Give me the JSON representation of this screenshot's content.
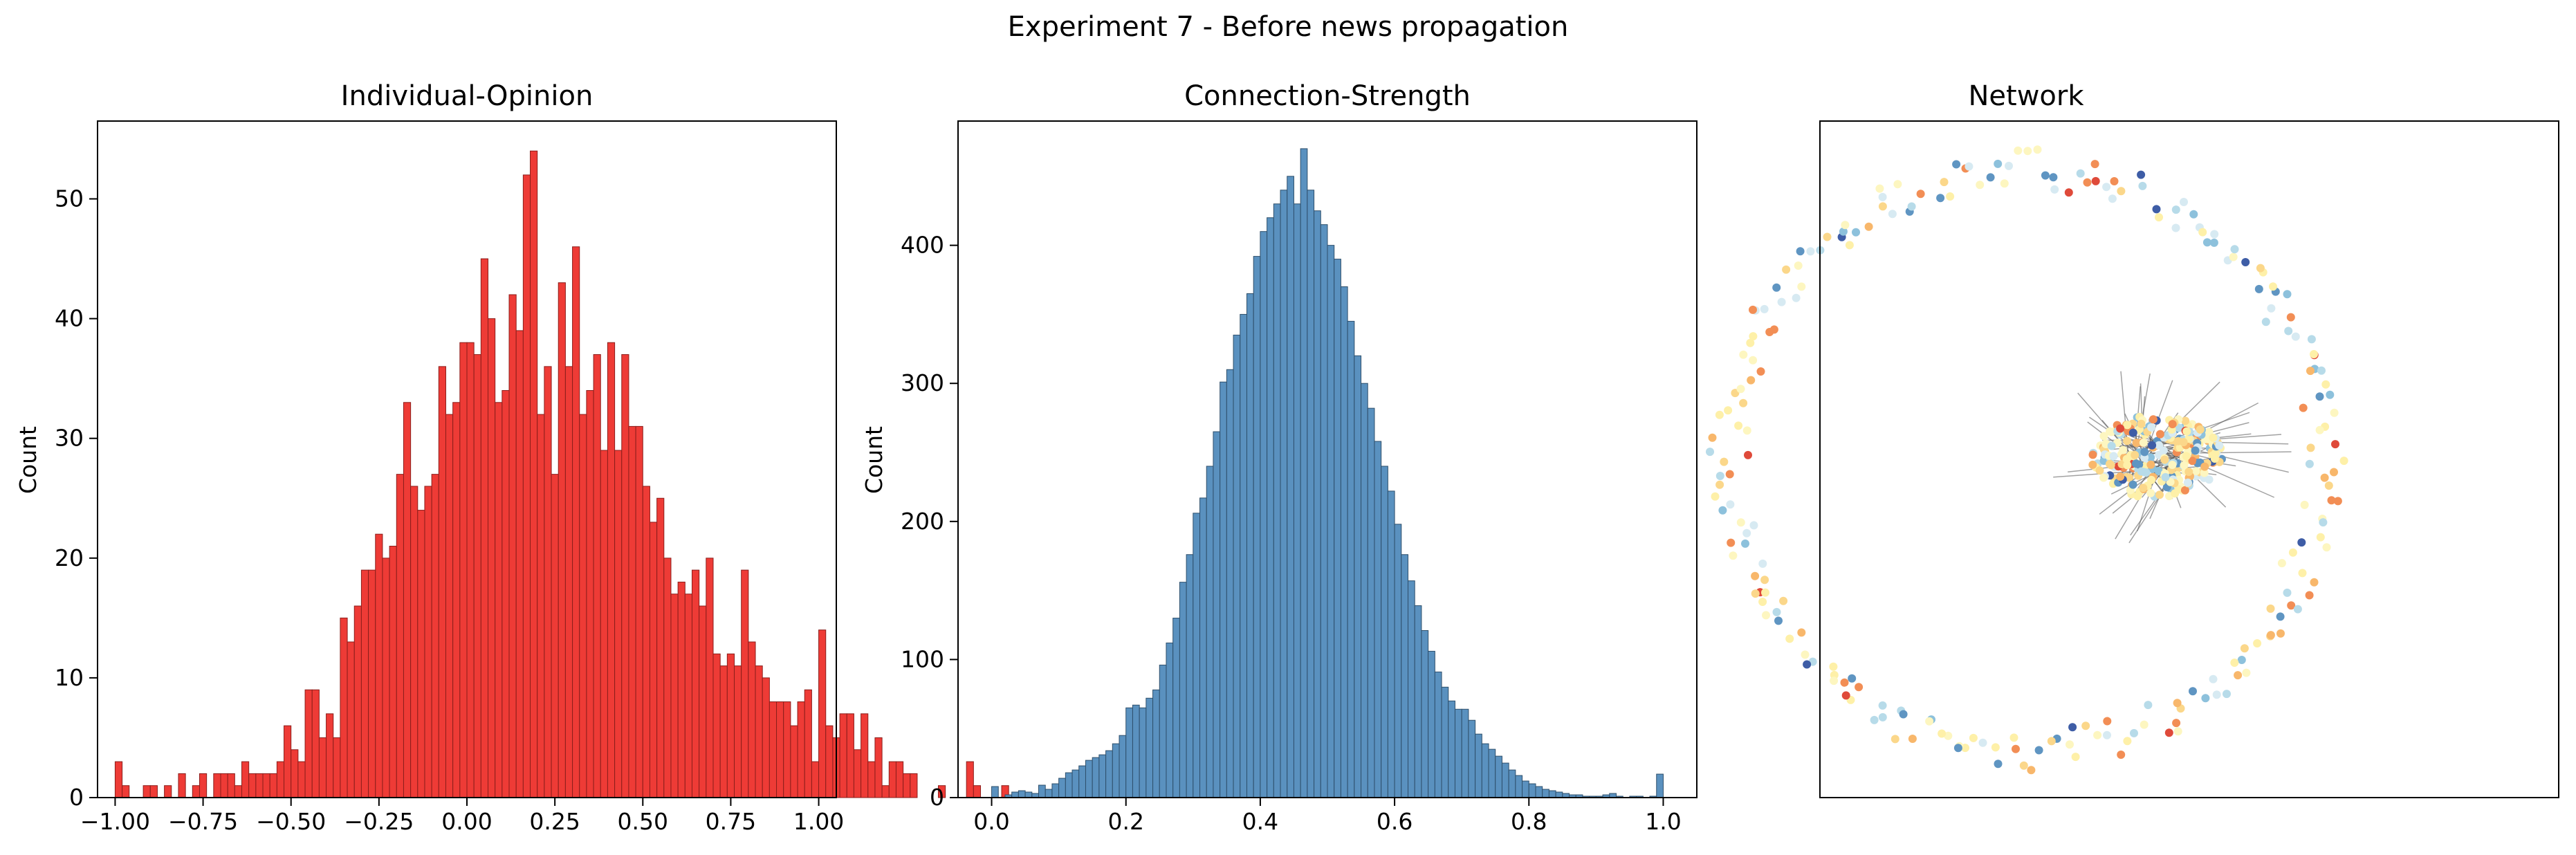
{
  "figure": {
    "suptitle": "Experiment 7 - Before news propagation"
  },
  "colors": {
    "opinion_bar": "#ee3b36",
    "opinion_edge": "#8b1e1b",
    "strength_bar": "#5a91bf",
    "strength_edge": "#2e4f6b",
    "network_palette": [
      "#fdf6c0",
      "#fef0a8",
      "#fbd78a",
      "#f8b76b",
      "#f28e55",
      "#df4a3a",
      "#d7eaf2",
      "#b7dbe9",
      "#8dc1dc",
      "#5f95c2",
      "#3e5da6",
      "#e5eef0"
    ]
  },
  "chart_data": [
    {
      "type": "bar",
      "title": "Individual-Opinion",
      "xlabel": "",
      "ylabel": "Count",
      "xlim": [
        -1.05,
        1.05
      ],
      "ylim": [
        0,
        56.5
      ],
      "grid": false,
      "xticks": [
        -1.0,
        -0.75,
        -0.5,
        -0.25,
        0.0,
        0.25,
        0.5,
        0.75,
        1.0
      ],
      "xtick_labels": [
        "−1.00",
        "−0.75",
        "−0.50",
        "−0.25",
        "0.00",
        "0.25",
        "0.50",
        "0.75",
        "1.00"
      ],
      "yticks": [
        0,
        10,
        20,
        30,
        40,
        50
      ],
      "ytick_labels": [
        "0",
        "10",
        "20",
        "30",
        "40",
        "50"
      ],
      "bins": {
        "start": -1.0,
        "width": 0.02
      },
      "values": [
        3,
        1,
        0,
        0,
        1,
        1,
        0,
        1,
        0,
        2,
        0,
        1,
        2,
        0,
        2,
        2,
        2,
        1,
        3,
        2,
        2,
        2,
        2,
        3,
        6,
        4,
        3,
        9,
        9,
        5,
        7,
        5,
        15,
        13,
        16,
        19,
        19,
        22,
        20,
        21,
        27,
        33,
        26,
        24,
        26,
        27,
        36,
        32,
        33,
        38,
        38,
        37,
        45,
        40,
        33,
        34,
        42,
        39,
        52,
        54,
        32,
        36,
        27,
        43,
        36,
        46,
        32,
        34,
        37,
        29,
        38,
        29,
        37,
        31,
        31,
        26,
        23,
        25,
        20,
        17,
        18,
        17,
        19,
        16,
        20,
        12,
        11,
        12,
        11,
        19,
        13,
        11,
        10,
        8,
        8,
        8,
        6,
        8,
        9,
        3,
        14,
        6,
        5,
        7,
        7,
        4,
        7,
        3,
        5,
        1,
        3,
        3,
        2,
        2,
        0,
        0,
        0,
        1,
        0,
        0,
        0,
        3,
        1,
        0,
        0,
        0,
        1
      ]
    },
    {
      "type": "bar",
      "title": "Connection-Strength",
      "xlabel": "",
      "ylabel": "Count",
      "xlim": [
        -0.05,
        1.05
      ],
      "ylim": [
        0,
        490
      ],
      "grid": false,
      "xticks": [
        0.0,
        0.2,
        0.4,
        0.6,
        0.8,
        1.0
      ],
      "xtick_labels": [
        "0.0",
        "0.2",
        "0.4",
        "0.6",
        "0.8",
        "1.0"
      ],
      "yticks": [
        0,
        100,
        200,
        300,
        400
      ],
      "ytick_labels": [
        "0",
        "100",
        "200",
        "300",
        "400"
      ],
      "bins": {
        "start": 0.0,
        "width": 0.01
      },
      "values": [
        8,
        0,
        2,
        4,
        5,
        4,
        3,
        9,
        6,
        10,
        14,
        18,
        20,
        23,
        27,
        29,
        31,
        34,
        39,
        45,
        65,
        67,
        65,
        72,
        78,
        96,
        112,
        130,
        156,
        176,
        206,
        217,
        240,
        265,
        301,
        310,
        335,
        350,
        365,
        392,
        410,
        420,
        430,
        440,
        450,
        430,
        470,
        440,
        425,
        415,
        400,
        390,
        370,
        345,
        320,
        300,
        282,
        258,
        240,
        222,
        198,
        176,
        157,
        139,
        121,
        106,
        91,
        80,
        70,
        64,
        64,
        56,
        46,
        39,
        35,
        30,
        25,
        20,
        16,
        12,
        10,
        8,
        6,
        5,
        4,
        3,
        2,
        2,
        1,
        1,
        1,
        2,
        3,
        1,
        0,
        1,
        1,
        0,
        1,
        17
      ]
    }
  ],
  "network": {
    "title": "Network"
  }
}
